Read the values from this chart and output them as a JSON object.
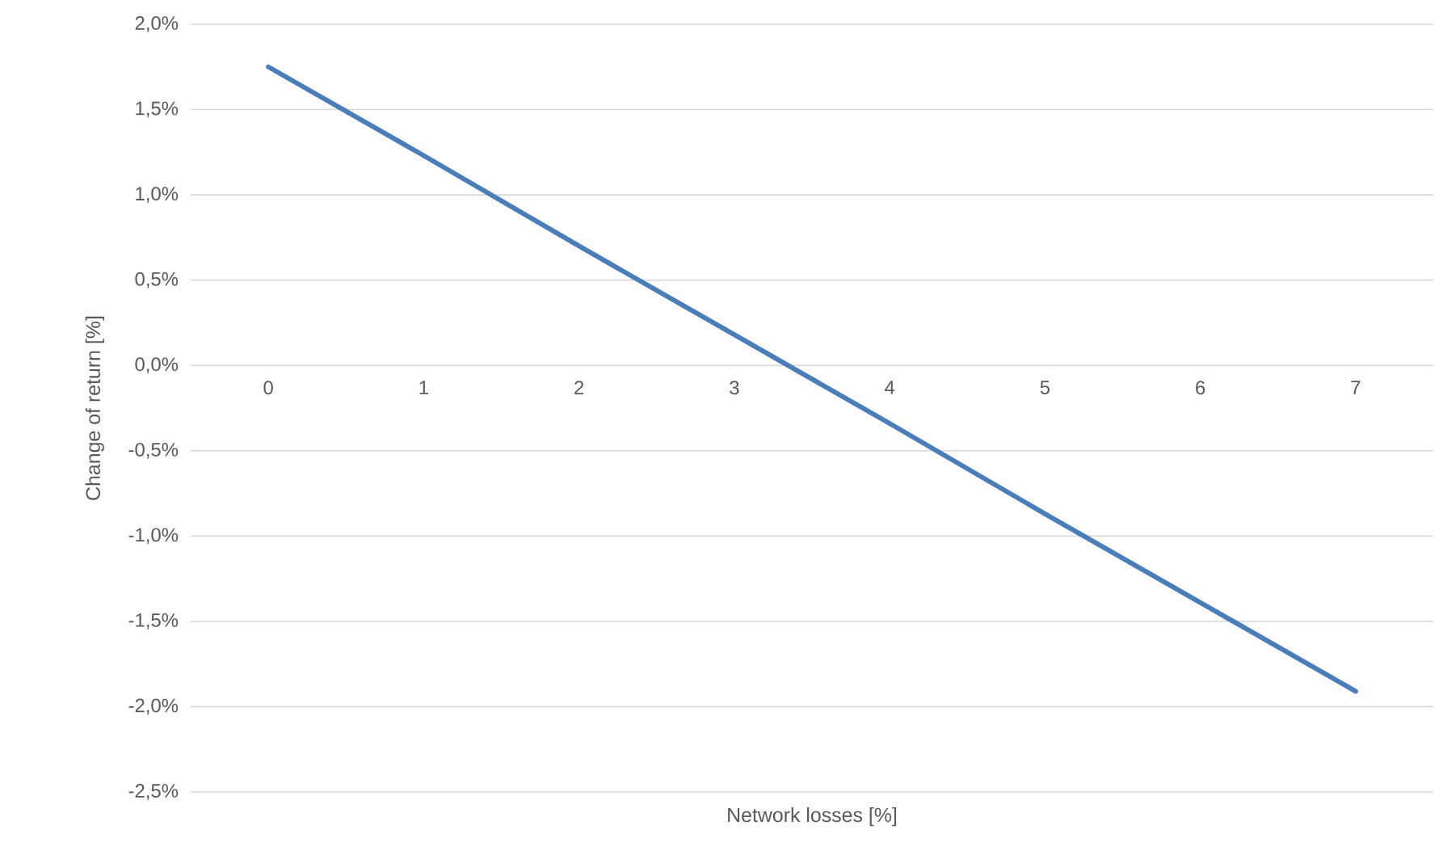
{
  "chart_data": {
    "type": "line",
    "xlabel": "Network losses [%]",
    "ylabel": "Change of return [%]",
    "categories": [
      "0",
      "1",
      "2",
      "3",
      "4",
      "5",
      "6",
      "7"
    ],
    "series": [
      {
        "color": "#4a7ebb",
        "values": [
          1.75,
          1.23,
          0.7,
          0.18,
          -0.34,
          -0.87,
          -1.39,
          -1.91
        ]
      }
    ],
    "ylim": [
      -2.5,
      2.0
    ],
    "yticks": [
      {
        "value": -2.5,
        "label": "-2,5%"
      },
      {
        "value": -2.0,
        "label": "-2,0%"
      },
      {
        "value": -1.5,
        "label": "-1,5%"
      },
      {
        "value": -1.0,
        "label": "-1,0%"
      },
      {
        "value": -0.5,
        "label": "-0,5%"
      },
      {
        "value": 0.0,
        "label": "0,0%"
      },
      {
        "value": 0.5,
        "label": "0,5%"
      },
      {
        "value": 1.0,
        "label": "1,0%"
      },
      {
        "value": 1.5,
        "label": "1,5%"
      },
      {
        "value": 2.0,
        "label": "2,0%"
      }
    ],
    "grid": "y",
    "marker": "none",
    "line_style": "solid"
  }
}
